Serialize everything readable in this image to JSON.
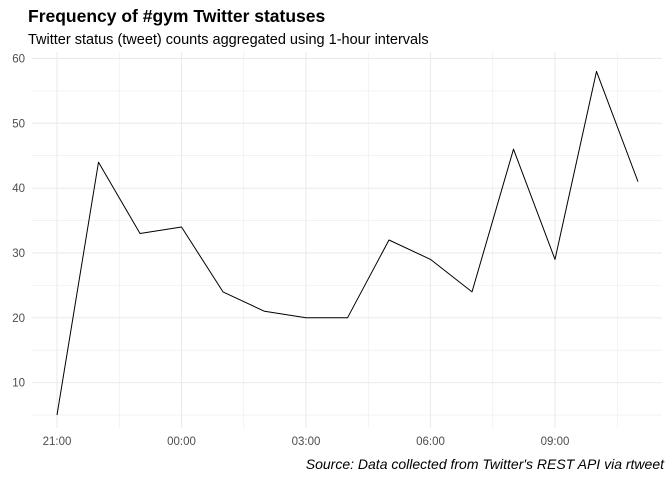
{
  "chart_data": {
    "type": "line",
    "title": "Frequency of #gym Twitter statuses",
    "subtitle": "Twitter status (tweet) counts aggregated using 1-hour intervals",
    "caption": "Source: Data collected from Twitter's REST API via rtweet",
    "xlabel": "",
    "ylabel": "",
    "x_ticks": [
      "21:00",
      "00:00",
      "03:00",
      "06:00",
      "09:00"
    ],
    "y_ticks": [
      10,
      20,
      30,
      40,
      50,
      60
    ],
    "x": [
      "21:00",
      "22:00",
      "23:00",
      "00:00",
      "01:00",
      "02:00",
      "03:00",
      "04:00",
      "05:00",
      "06:00",
      "07:00",
      "08:00",
      "09:00",
      "10:00",
      "11:00"
    ],
    "values": [
      5,
      44,
      33,
      34,
      24,
      21,
      20,
      20,
      32,
      29,
      24,
      46,
      29,
      58,
      41
    ],
    "ylim": [
      3,
      61
    ],
    "grid": true,
    "line_color": "#000000",
    "grid_color": "#ebebeb"
  }
}
